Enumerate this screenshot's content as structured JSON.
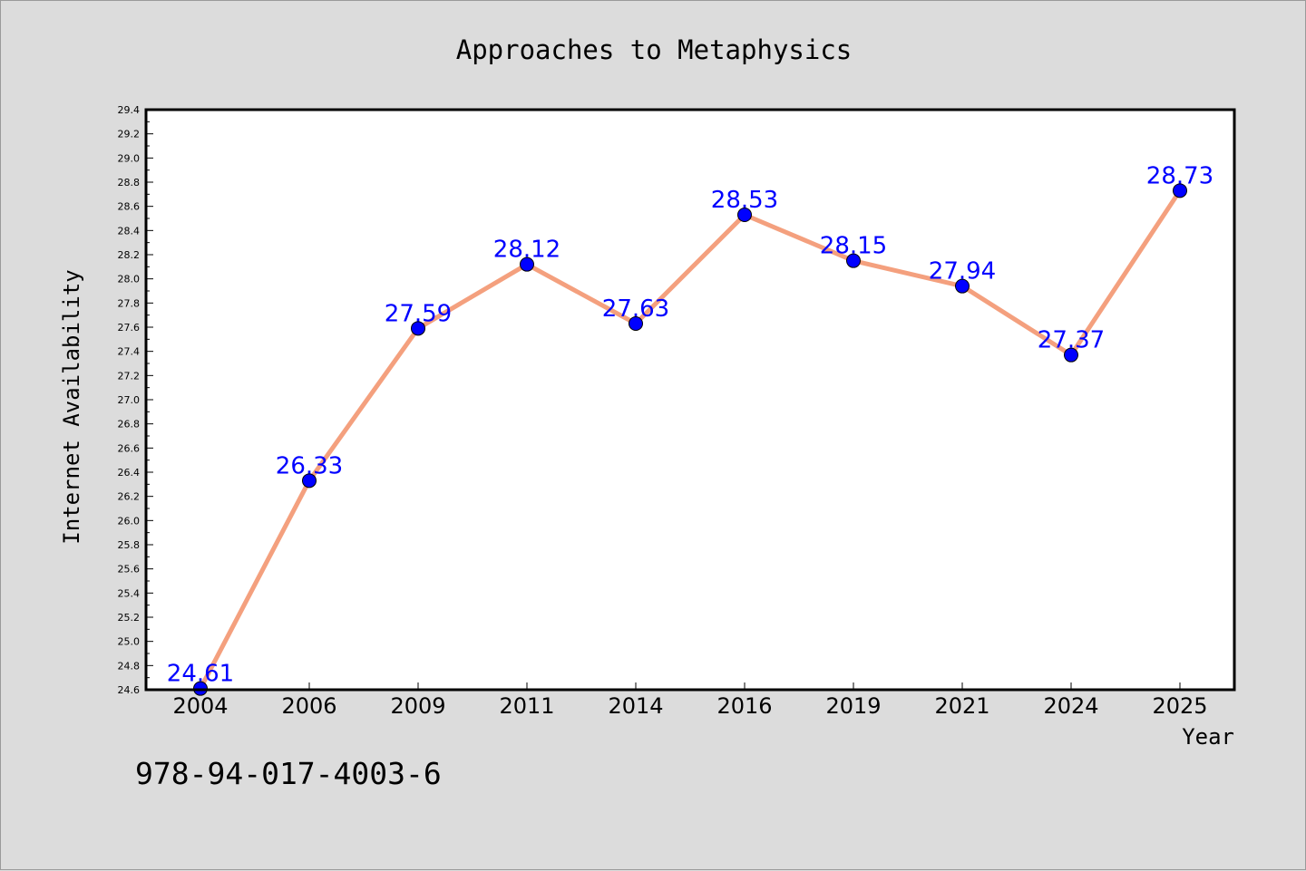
{
  "chart_data": {
    "type": "line",
    "title": "Approaches to Metaphysics",
    "xlabel": "Year",
    "ylabel": "Internet Availability",
    "categories": [
      "2004",
      "2006",
      "2009",
      "2011",
      "2014",
      "2016",
      "2019",
      "2021",
      "2024",
      "2025"
    ],
    "series": [
      {
        "values": [
          24.61,
          26.33,
          27.59,
          28.12,
          27.63,
          28.53,
          28.15,
          27.94,
          27.37,
          28.73
        ]
      }
    ],
    "data_labels": [
      "24.61",
      "26.33",
      "27.59",
      "28.12",
      "27.63",
      "28.53",
      "28.15",
      "27.94",
      "27.37",
      "28.73"
    ],
    "ylim": [
      24.6,
      29.4
    ],
    "y_ticks": [
      "24.6",
      "24.8",
      "25.0",
      "25.2",
      "25.4",
      "25.6",
      "25.8",
      "26.0",
      "26.2",
      "26.4",
      "26.6",
      "26.8",
      "27.0",
      "27.2",
      "27.4",
      "27.6",
      "27.8",
      "28.0",
      "28.2",
      "28.4",
      "28.6",
      "28.8",
      "29.0",
      "29.2",
      "29.4"
    ],
    "grid": false,
    "line_color": "#f4a07e",
    "marker_color": "#0000ff",
    "label_color": "#0000ff",
    "annotation": "978-94-017-4003-6"
  }
}
